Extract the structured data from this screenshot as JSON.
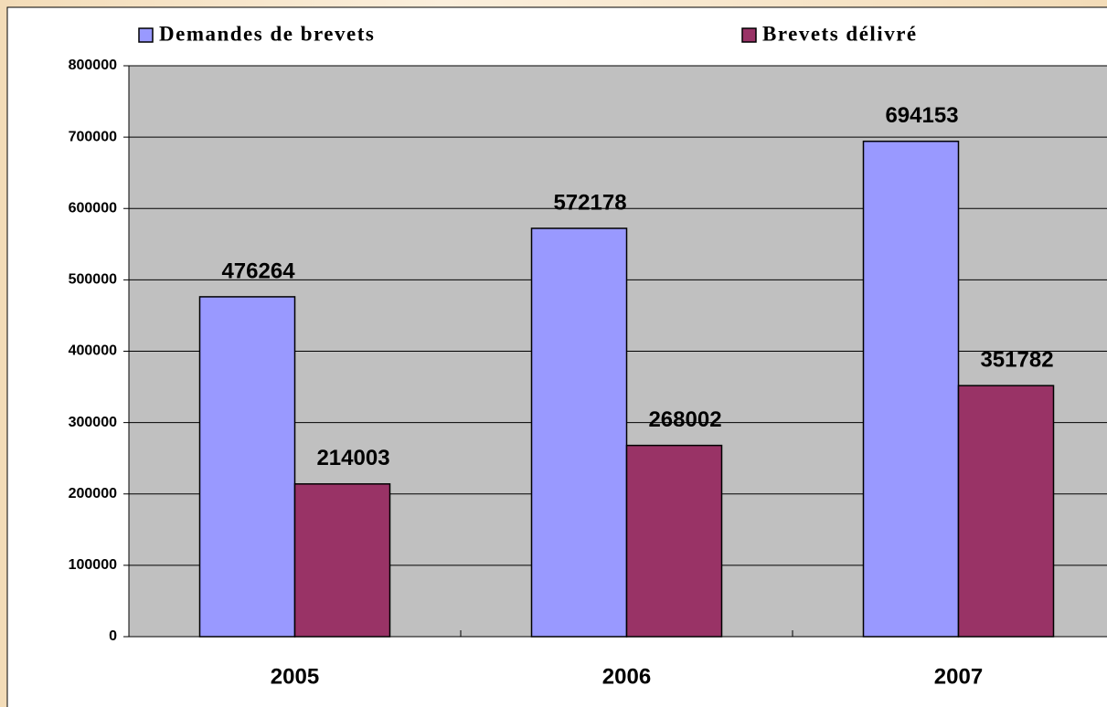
{
  "chart_data": {
    "type": "bar",
    "categories": [
      "2005",
      "2006",
      "2007"
    ],
    "series": [
      {
        "name": "Demandes de brevets",
        "color": "#9999ff",
        "values": [
          476264,
          572178,
          694153
        ]
      },
      {
        "name": "Brevets délivré",
        "color": "#993366",
        "values": [
          214003,
          268002,
          351782
        ]
      }
    ],
    "ylim": [
      0,
      800000
    ],
    "yticks": [
      0,
      100000,
      200000,
      300000,
      400000,
      500000,
      600000,
      700000,
      800000
    ],
    "grid": true,
    "plot_background": "#c0c0c0",
    "legend": "top"
  }
}
